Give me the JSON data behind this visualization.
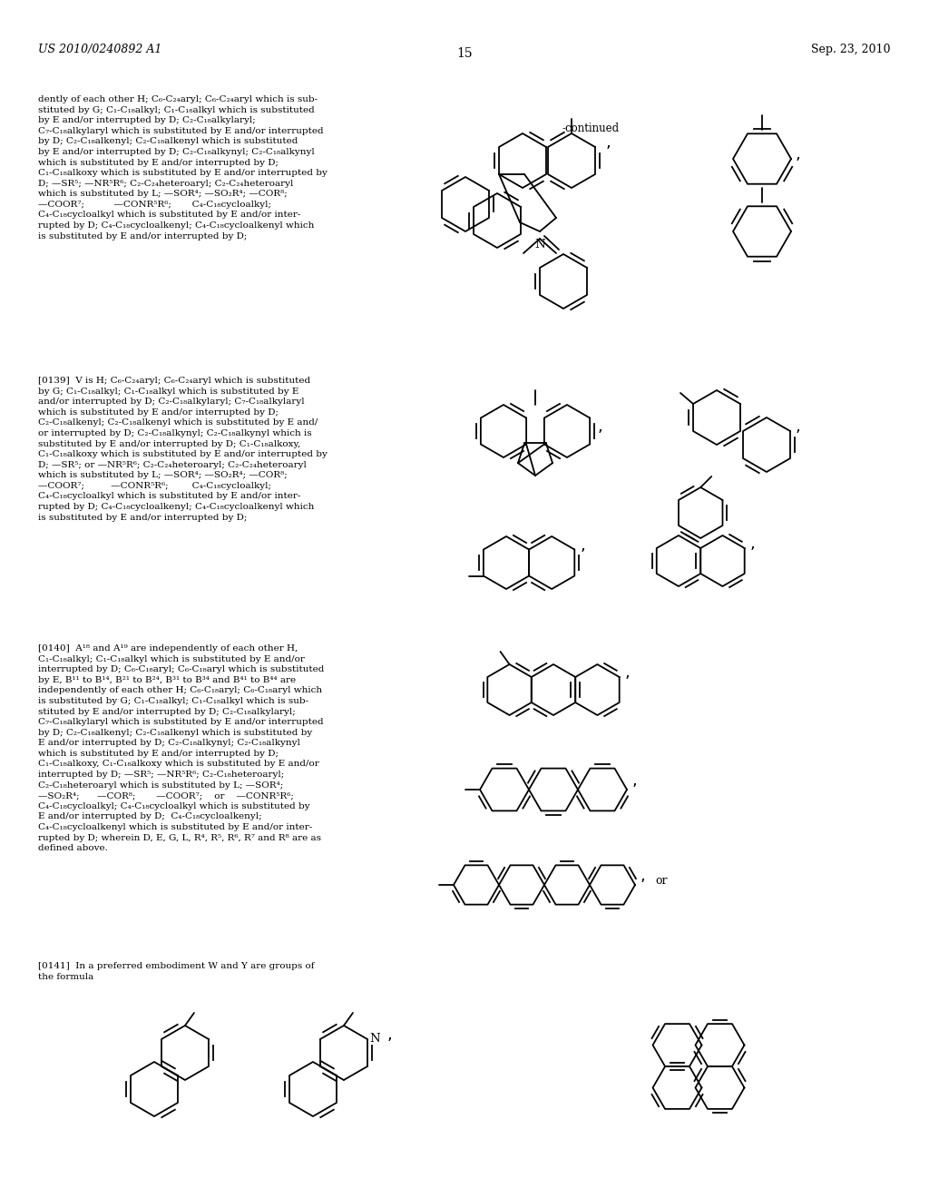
{
  "page_number": "15",
  "header_left": "US 2010/0240892 A1",
  "header_right": "Sep. 23, 2010",
  "bg": "#ffffff",
  "text1": "dently of each other H; C₆-C₂₄aryl; C₆-C₂₄aryl which is sub-\nstituted by G; C₁-C₁₈alkyl; C₁-C₁₈alkyl which is substituted\nby E and/or interrupted by D; C₂-C₁₈alkylaryl;\nC₇-C₁₈alkylaryl which is substituted by E and/or interrupted\nby D; C₂-C₁₈alkenyl; C₂-C₁₈alkenyl which is substituted\nby E and/or interrupted by D; C₂-C₁₈alkynyl; C₂-C₁₈alkynyl\nwhich is substituted by E and/or interrupted by D;\nC₁-C₁₈alkoxy which is substituted by E and/or interrupted by\nD; —SR⁵; —NR⁵R⁶; C₂-C₂₄heteroaryl; C₂-C₂₄heteroaryl\nwhich is substituted by L; —SOR⁴; —SO₂R⁴; —COR⁸;\n—COOR⁷;          —CONR⁵R⁶;       C₄-C₁₈cycloalkyl;\nC₄-C₁₈cycloalkyl which is substituted by E and/or inter-\nrupted by D; C₄-C₁₈cycloalkenyl; C₄-C₁₈cycloalkenyl which\nis substituted by E and/or interrupted by D;",
  "text2": "[0139]  V is H; C₆-C₂₄aryl; C₆-C₂₄aryl which is substituted\nby G; C₁-C₁₈alkyl; C₁-C₁₈alkyl which is substituted by E\nand/or interrupted by D; C₂-C₁₈alkylaryl; C₇-C₁₈alkylaryl\nwhich is substituted by E and/or interrupted by D;\nC₂-C₁₈alkenyl; C₂-C₁₈alkenyl which is substituted by E and/\nor interrupted by D; C₂-C₁₈alkynyl; C₂-C₁₈alkynyl which is\nsubstituted by E and/or interrupted by D; C₁-C₁₈alkoxy,\nC₁-C₁₈alkoxy which is substituted by E and/or interrupted by\nD; —SR⁵; or —NR⁵R⁶; C₂-C₂₄heteroaryl; C₂-C₂₄heteroaryl\nwhich is substituted by L; —SOR⁴; —SO₂R⁴; —COR⁸;\n—COOR⁷;         —CONR⁵R⁶;        C₄-C₁₈cycloalkyl;\nC₄-C₁₈cycloalkyl which is substituted by E and/or inter-\nrupted by D; C₄-C₁₈cycloalkenyl; C₄-C₁₈cycloalkenyl which\nis substituted by E and/or interrupted by D;",
  "text3": "[0140]  A¹⁸ and A¹⁹ are independently of each other H,\nC₁-C₁₈alkyl; C₁-C₁₈alkyl which is substituted by E and/or\ninterrupted by D; C₆-C₁₈aryl; C₆-C₁₈aryl which is substituted\nby E, B¹¹ to B¹⁴, B²¹ to B²⁴, B³¹ to B³⁴ and B⁴¹ to B⁴⁴ are\nindependently of each other H; C₆-C₁₈aryl; C₆-C₁₈aryl which\nis substituted by G; C₁-C₁₈alkyl; C₁-C₁₈alkyl which is sub-\nstituted by E and/or interrupted by D; C₂-C₁₈alkylaryl;\nC₇-C₁₈alkylaryl which is substituted by E and/or interrupted\nby D; C₂-C₁₈alkenyl; C₂-C₁₈alkenyl which is substituted by\nE and/or interrupted by D; C₂-C₁₈alkynyl; C₂-C₁₈alkynyl\nwhich is substituted by E and/or interrupted by D;\nC₁-C₁₈alkoxy, C₁-C₁₈alkoxy which is substituted by E and/or\ninterrupted by D; —SR⁵; —NR⁵R⁶; C₂-C₁₈heteroaryl;\nC₂-C₁₈heteroaryl which is substituted by L; —SOR⁴;\n—SO₂R⁴;      —COR⁸;       —COOR⁷;    or    —CONR⁵R⁶;\nC₄-C₁₈cycloalkyl; C₄-C₁₈cycloalkyl which is substituted by\nE and/or interrupted by D;  C₄-C₁₈cycloalkenyl;\nC₄-C₁₈cycloalkenyl which is substituted by E and/or inter-\nrupted by D; wherein D, E, G, L, R⁴, R⁵, R⁶, R⁷ and R⁸ are as\ndefined above.",
  "text4": "[0141]  In a preferred embodiment W and Y are groups of\nthe formula"
}
